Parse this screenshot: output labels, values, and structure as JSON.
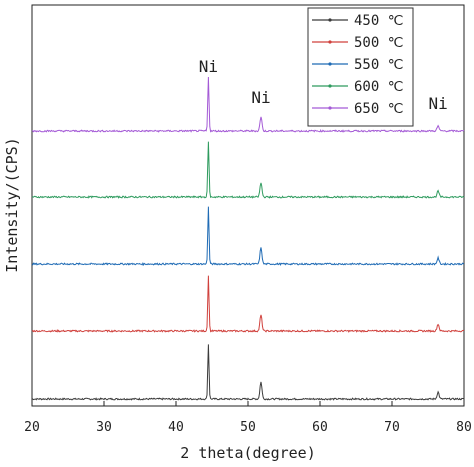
{
  "chart_data": {
    "type": "line",
    "xlabel": "2 theta(degree)",
    "ylabel": "Intensity/(CPS)",
    "xlim": [
      20,
      80
    ],
    "xticks": [
      "20",
      "30",
      "40",
      "50",
      "60",
      "70",
      "80"
    ],
    "y_ticks_shown": false,
    "grid": false,
    "legend_position": "top-right",
    "annotations": [
      {
        "text": "Ni",
        "x": 44.5
      },
      {
        "text": "Ni",
        "x": 51.8
      },
      {
        "text": "Ni",
        "x": 76.4
      }
    ],
    "peaks_2theta": [
      44.5,
      51.8,
      76.4
    ],
    "series": [
      {
        "name": "450 ℃",
        "color": "#3b3b3b",
        "baseline": 0,
        "peak_heights": [
          55,
          17,
          7
        ]
      },
      {
        "name": "500 ℃",
        "color": "#d0403c",
        "baseline": 68,
        "peak_heights": [
          55,
          16,
          7
        ]
      },
      {
        "name": "550 ℃",
        "color": "#1f6bb5",
        "baseline": 135,
        "peak_heights": [
          57,
          16,
          6
        ]
      },
      {
        "name": "600 ℃",
        "color": "#2e9b5e",
        "baseline": 202,
        "peak_heights": [
          56,
          14,
          6
        ]
      },
      {
        "name": "650 ℃",
        "color": "#a45ad6",
        "baseline": 268,
        "peak_heights": [
          54,
          14,
          5
        ]
      }
    ]
  }
}
